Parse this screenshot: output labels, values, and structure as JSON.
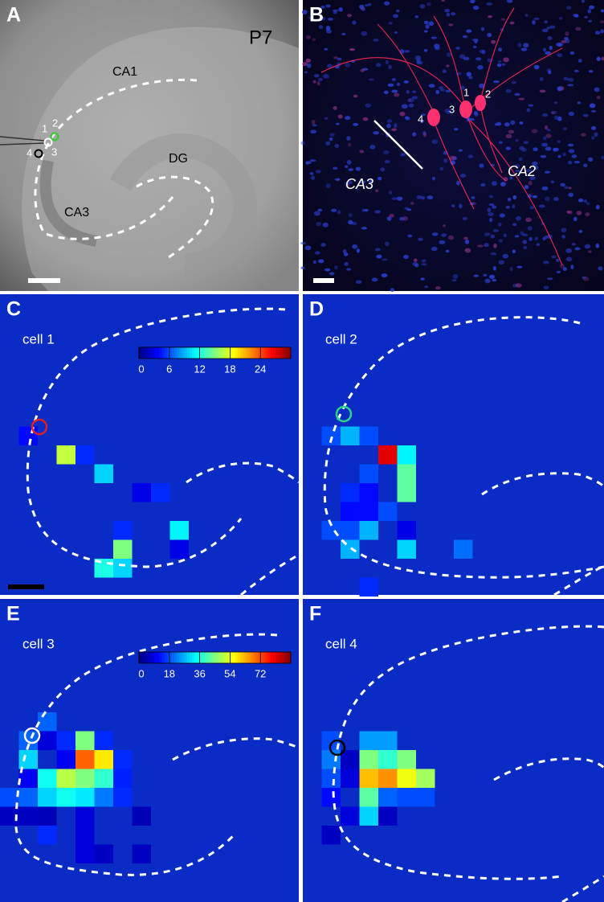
{
  "panel_a": {
    "label": "A",
    "age": "P7",
    "regions": {
      "ca1": "CA1",
      "dg": "DG",
      "ca3": "CA3"
    },
    "cell_numbers": [
      "1",
      "2",
      "3",
      "4"
    ]
  },
  "panel_b": {
    "label": "B",
    "regions": {
      "ca3": "CA3",
      "ca2": "CA2"
    },
    "cell_numbers": [
      "1",
      "2",
      "3",
      "4"
    ]
  },
  "heatmaps": [
    {
      "type": "heatmap",
      "label": "C",
      "title": "cell 1",
      "colormap": "jet",
      "clim": [
        0,
        30
      ],
      "colorbar_ticks": [
        0,
        6,
        12,
        18,
        24
      ],
      "values": [
        [
          4,
          null,
          null,
          null,
          null,
          null,
          null,
          null,
          null
        ],
        [
          null,
          null,
          17,
          5,
          null,
          null,
          null,
          null,
          null
        ],
        [
          null,
          null,
          null,
          null,
          10,
          null,
          null,
          null,
          null
        ],
        [
          null,
          null,
          null,
          null,
          null,
          null,
          3,
          5,
          null
        ],
        [
          null,
          null,
          null,
          null,
          null,
          null,
          null,
          null,
          null
        ],
        [
          null,
          null,
          null,
          null,
          null,
          5,
          null,
          null,
          11
        ],
        [
          null,
          null,
          null,
          null,
          null,
          15,
          null,
          null,
          3
        ],
        [
          null,
          null,
          null,
          null,
          12,
          10,
          null,
          null,
          null
        ]
      ]
    },
    {
      "type": "heatmap",
      "label": "D",
      "title": "cell 2",
      "colormap": "jet",
      "clim": [
        0,
        30
      ],
      "values": [
        [
          6,
          9,
          6,
          null,
          null,
          null,
          null,
          null
        ],
        [
          null,
          null,
          null,
          27,
          11,
          null,
          null,
          null
        ],
        [
          null,
          null,
          6,
          null,
          14,
          null,
          null,
          null
        ],
        [
          null,
          5,
          4,
          null,
          14,
          null,
          null,
          null
        ],
        [
          null,
          4,
          4,
          6,
          null,
          null,
          null,
          null
        ],
        [
          6,
          6,
          9,
          null,
          3,
          null,
          null,
          null
        ],
        [
          null,
          9,
          null,
          null,
          10,
          null,
          null,
          7
        ],
        [
          null,
          null,
          null,
          null,
          null,
          null,
          null,
          null
        ],
        [
          null,
          null,
          5,
          null,
          null,
          null,
          null,
          null
        ]
      ]
    },
    {
      "type": "heatmap",
      "label": "E",
      "title": "cell 3",
      "colormap": "jet",
      "clim": [
        0,
        90
      ],
      "colorbar_ticks": [
        0,
        18,
        36,
        54,
        72
      ],
      "values": [
        [
          null,
          null,
          20,
          null,
          null,
          null,
          null,
          null
        ],
        [
          null,
          20,
          8,
          15,
          45,
          15,
          null,
          null
        ],
        [
          null,
          30,
          null,
          10,
          70,
          58,
          15,
          null
        ],
        [
          null,
          10,
          35,
          50,
          45,
          38,
          14,
          null
        ],
        [
          18,
          20,
          30,
          35,
          32,
          22,
          15,
          null
        ],
        [
          6,
          6,
          5,
          null,
          8,
          null,
          null,
          5
        ],
        [
          null,
          null,
          15,
          null,
          8,
          null,
          null,
          null
        ],
        [
          null,
          null,
          null,
          null,
          8,
          6,
          null,
          6
        ]
      ]
    },
    {
      "type": "heatmap",
      "label": "F",
      "title": "cell 4",
      "colormap": "jet",
      "clim": [
        0,
        90
      ],
      "values": [
        [
          18,
          null,
          25,
          25,
          null,
          null
        ],
        [
          22,
          6,
          45,
          38,
          45,
          null
        ],
        [
          18,
          8,
          62,
          66,
          55,
          48
        ],
        [
          12,
          null,
          42,
          20,
          18,
          18
        ],
        [
          null,
          8,
          30,
          6,
          null,
          null
        ],
        [
          6,
          null,
          null,
          null,
          null,
          null
        ]
      ]
    }
  ]
}
